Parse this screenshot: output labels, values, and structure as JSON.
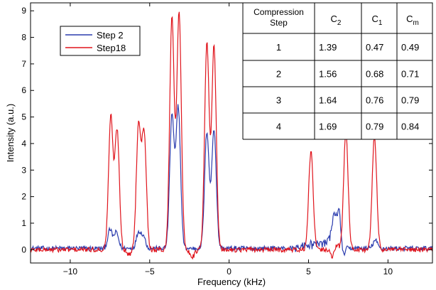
{
  "chart_data": {
    "type": "line",
    "xlabel": "Frequency (kHz)",
    "ylabel": "Intensity (a.u.)",
    "xlim": [
      -12.5,
      12.8
    ],
    "ylim": [
      -0.5,
      9.3
    ],
    "xticks": [
      -10,
      -5,
      0,
      5,
      10
    ],
    "yticks": [
      0,
      1,
      2,
      3,
      4,
      5,
      6,
      7,
      8,
      9
    ],
    "legend_position": "top-left",
    "series": [
      {
        "name": "Step 2",
        "color": "#2b3cae",
        "peaks": [
          {
            "x": -7.5,
            "y": 0.7
          },
          {
            "x": -7.1,
            "y": 0.6
          },
          {
            "x": -5.7,
            "y": 0.6
          },
          {
            "x": -5.4,
            "y": 0.45
          },
          {
            "x": -3.6,
            "y": 5.0
          },
          {
            "x": -3.2,
            "y": 5.3
          },
          {
            "x": -1.4,
            "y": 4.4
          },
          {
            "x": -0.95,
            "y": 4.5
          },
          {
            "x": 6.6,
            "y": 0.85
          },
          {
            "x": 6.95,
            "y": 1.1
          },
          {
            "x": 9.2,
            "y": 0.3
          }
        ]
      },
      {
        "name": "Step18",
        "color": "#e0141c",
        "peaks": [
          {
            "x": -7.45,
            "y": 5.0
          },
          {
            "x": -7.05,
            "y": 4.5
          },
          {
            "x": -5.7,
            "y": 4.65
          },
          {
            "x": -5.35,
            "y": 4.4
          },
          {
            "x": -3.6,
            "y": 8.8
          },
          {
            "x": -3.15,
            "y": 9.0
          },
          {
            "x": -1.4,
            "y": 7.8
          },
          {
            "x": -0.95,
            "y": 7.7
          },
          {
            "x": 5.15,
            "y": 3.7
          },
          {
            "x": 7.35,
            "y": 4.5
          },
          {
            "x": 9.15,
            "y": 4.25
          }
        ]
      }
    ]
  },
  "table": {
    "headers": [
      [
        "Compression",
        "Step"
      ],
      [
        "C",
        "2"
      ],
      [
        "C",
        "1"
      ],
      [
        "C",
        "m"
      ]
    ],
    "rows": [
      [
        "1",
        "1.39",
        "0.47",
        "0.49"
      ],
      [
        "2",
        "1.56",
        "0.68",
        "0.71"
      ],
      [
        "3",
        "1.64",
        "0.76",
        "0.79"
      ],
      [
        "4",
        "1.69",
        "0.79",
        "0.84"
      ]
    ]
  }
}
